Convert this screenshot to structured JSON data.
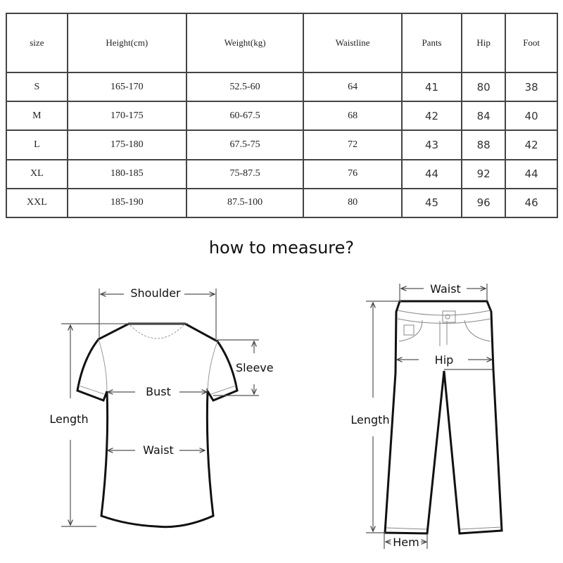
{
  "size_table": {
    "headers": [
      "size",
      "Height(cm)",
      "Weight(kg)",
      "Waistline",
      "Pants",
      "Hip",
      "Foot"
    ],
    "rows": [
      [
        "S",
        "165-170",
        "52.5-60",
        "64",
        "41",
        "80",
        "38"
      ],
      [
        "M",
        "170-175",
        "60-67.5",
        "68",
        "42",
        "84",
        "40"
      ],
      [
        "L",
        "175-180",
        "67.5-75",
        "72",
        "43",
        "88",
        "42"
      ],
      [
        "XL",
        "180-185",
        "75-87.5",
        "76",
        "44",
        "92",
        "44"
      ],
      [
        "XXL",
        "185-190",
        "87.5-100",
        "80",
        "45",
        "96",
        "46"
      ]
    ]
  },
  "measure_title": "how to measure?",
  "shirt": {
    "shoulder": "Shoulder",
    "sleeve": "Sleeve",
    "bust": "Bust",
    "waist": "Waist",
    "length": "Length"
  },
  "pants": {
    "waist": "Waist",
    "hip": "Hip",
    "length": "Length",
    "hem": "Hem"
  }
}
